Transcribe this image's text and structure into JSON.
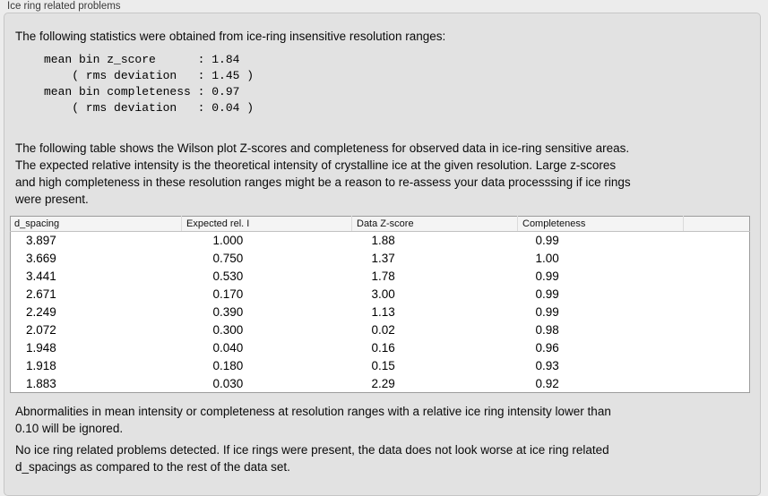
{
  "panel": {
    "title": "Ice ring related problems"
  },
  "intro_text": "The following statistics were obtained from ice-ring insensitive resolution ranges:",
  "stats_block": "mean bin z_score      : 1.84\n    ( rms deviation   : 1.45 )\nmean bin completeness : 0.97\n    ( rms deviation   : 0.04 )",
  "description_text": "The following table shows the Wilson plot Z-scores and completeness for observed data in ice-ring sensitive areas.\nThe expected relative intensity is the theoretical intensity of crystalline ice at the given resolution. Large z-scores\nand high completeness in these resolution ranges might be a reason to re-assess your data processsing if ice rings\nwere present.",
  "table": {
    "columns": [
      "d_spacing",
      "Expected rel. I",
      "Data Z-score",
      "Completeness",
      ""
    ],
    "rows": [
      [
        "3.897",
        "1.000",
        "1.88",
        "0.99"
      ],
      [
        "3.669",
        "0.750",
        "1.37",
        "1.00"
      ],
      [
        "3.441",
        "0.530",
        "1.78",
        "0.99"
      ],
      [
        "2.671",
        "0.170",
        "3.00",
        "0.99"
      ],
      [
        "2.249",
        "0.390",
        "1.13",
        "0.99"
      ],
      [
        "2.072",
        "0.300",
        "0.02",
        "0.98"
      ],
      [
        "1.948",
        "0.040",
        "0.16",
        "0.96"
      ],
      [
        "1.918",
        "0.180",
        "0.15",
        "0.93"
      ],
      [
        "1.883",
        "0.030",
        "2.29",
        "0.92"
      ]
    ]
  },
  "notes": {
    "ignore_note": "Abnormalities in mean intensity or completeness at resolution ranges with a relative ice ring intensity lower than\n0.10 will be ignored.",
    "conclusion": "No ice ring related problems detected. If ice rings were present, the data does not look worse at ice ring related\nd_spacings as compared to the rest of the data set."
  },
  "colors": {
    "page_bg": "#ececec",
    "groupbox_bg": "#e2e2e2",
    "groupbox_border": "#c6c6c6",
    "table_bg": "#ffffff",
    "table_border": "#9c9c9c",
    "table_header_bg": "#f4f4f4",
    "text": "#0a0a0a"
  }
}
